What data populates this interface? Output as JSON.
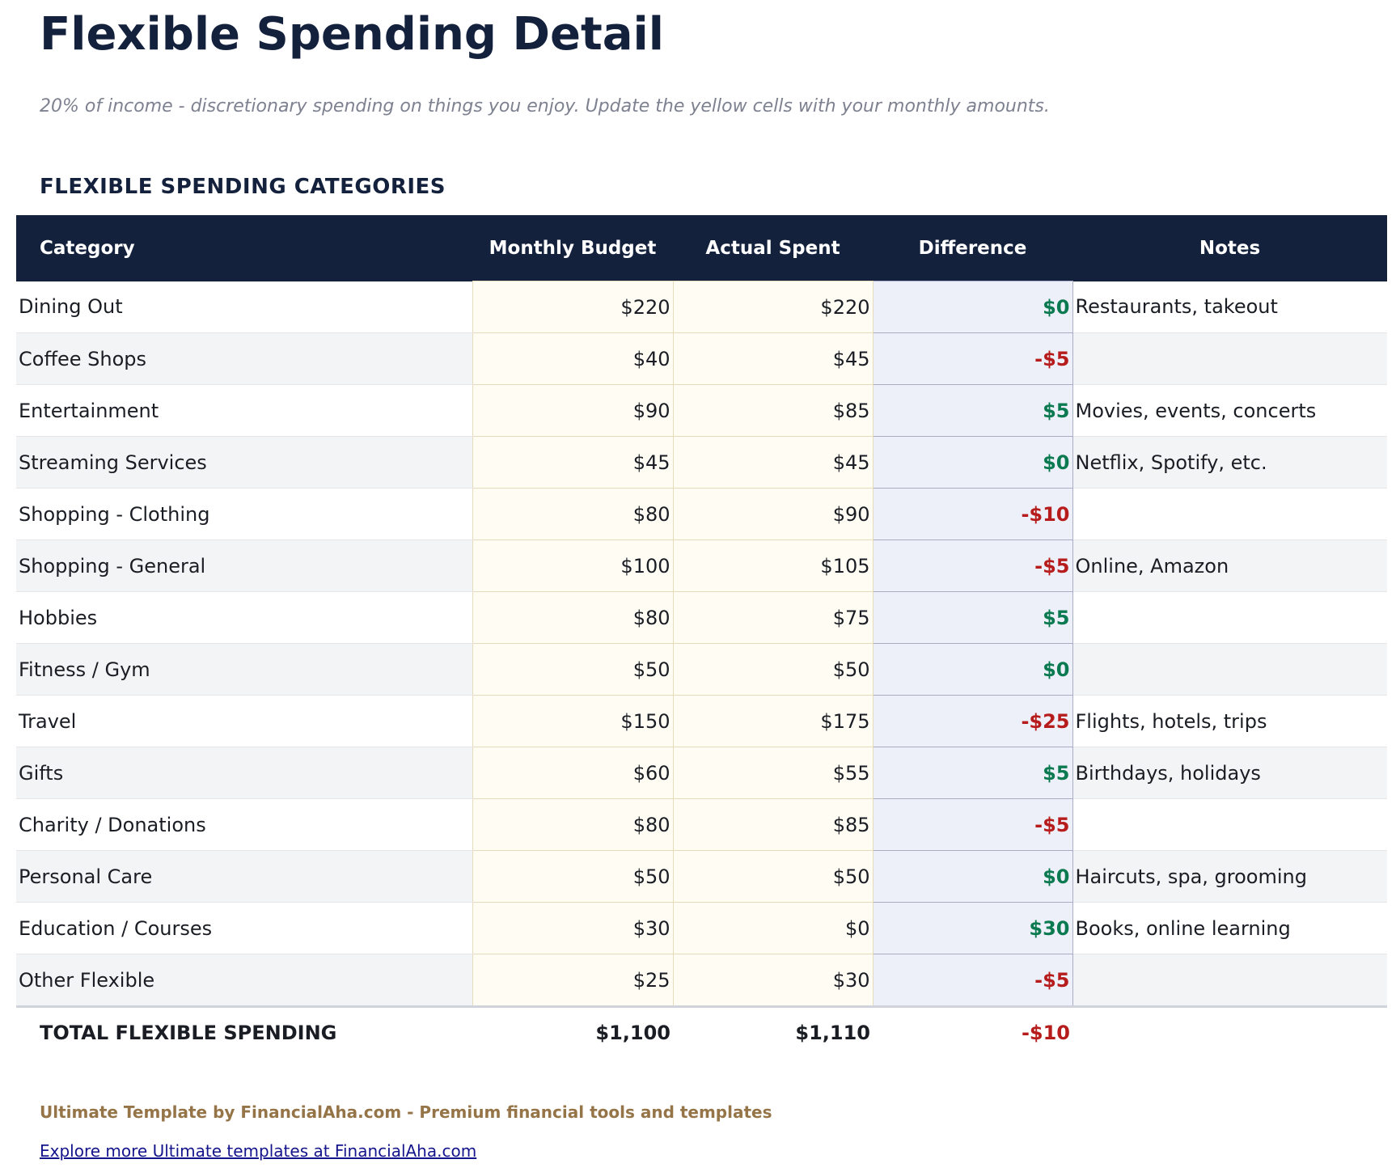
{
  "title": "Flexible Spending Detail",
  "subtitle": "20% of income - discretionary spending on things you enjoy. Update the yellow cells with your monthly amounts.",
  "section_title": "FLEXIBLE SPENDING CATEGORIES",
  "colors": {
    "header_bg": "#14213d",
    "positive": "#0b7a50",
    "negative": "#b71c1c",
    "input_cell": "#fefcf3"
  },
  "table": {
    "headers": [
      "Category",
      "Monthly Budget",
      "Actual Spent",
      "Difference",
      "Notes"
    ],
    "rows": [
      {
        "category": "Dining Out",
        "budget": "$220",
        "actual": "$220",
        "difference": "$0",
        "sign": "pos",
        "notes": "Restaurants, takeout"
      },
      {
        "category": "Coffee Shops",
        "budget": "$40",
        "actual": "$45",
        "difference": "-$5",
        "sign": "neg",
        "notes": ""
      },
      {
        "category": "Entertainment",
        "budget": "$90",
        "actual": "$85",
        "difference": "$5",
        "sign": "pos",
        "notes": "Movies, events, concerts"
      },
      {
        "category": "Streaming Services",
        "budget": "$45",
        "actual": "$45",
        "difference": "$0",
        "sign": "pos",
        "notes": "Netflix, Spotify, etc."
      },
      {
        "category": "Shopping - Clothing",
        "budget": "$80",
        "actual": "$90",
        "difference": "-$10",
        "sign": "neg",
        "notes": ""
      },
      {
        "category": "Shopping - General",
        "budget": "$100",
        "actual": "$105",
        "difference": "-$5",
        "sign": "neg",
        "notes": "Online, Amazon"
      },
      {
        "category": "Hobbies",
        "budget": "$80",
        "actual": "$75",
        "difference": "$5",
        "sign": "pos",
        "notes": ""
      },
      {
        "category": "Fitness / Gym",
        "budget": "$50",
        "actual": "$50",
        "difference": "$0",
        "sign": "pos",
        "notes": ""
      },
      {
        "category": "Travel",
        "budget": "$150",
        "actual": "$175",
        "difference": "-$25",
        "sign": "neg",
        "notes": "Flights, hotels, trips"
      },
      {
        "category": "Gifts",
        "budget": "$60",
        "actual": "$55",
        "difference": "$5",
        "sign": "pos",
        "notes": "Birthdays, holidays"
      },
      {
        "category": "Charity / Donations",
        "budget": "$80",
        "actual": "$85",
        "difference": "-$5",
        "sign": "neg",
        "notes": ""
      },
      {
        "category": "Personal Care",
        "budget": "$50",
        "actual": "$50",
        "difference": "$0",
        "sign": "pos",
        "notes": "Haircuts, spa, grooming"
      },
      {
        "category": "Education / Courses",
        "budget": "$30",
        "actual": "$0",
        "difference": "$30",
        "sign": "pos",
        "notes": "Books, online learning"
      },
      {
        "category": "Other Flexible",
        "budget": "$25",
        "actual": "$30",
        "difference": "-$5",
        "sign": "neg",
        "notes": ""
      }
    ],
    "total": {
      "label": "TOTAL FLEXIBLE SPENDING",
      "budget": "$1,100",
      "actual": "$1,110",
      "difference": "-$10"
    }
  },
  "footer": {
    "credit": "Ultimate Template by FinancialAha.com - Premium financial tools and templates",
    "link": "Explore more Ultimate templates at FinancialAha.com"
  }
}
